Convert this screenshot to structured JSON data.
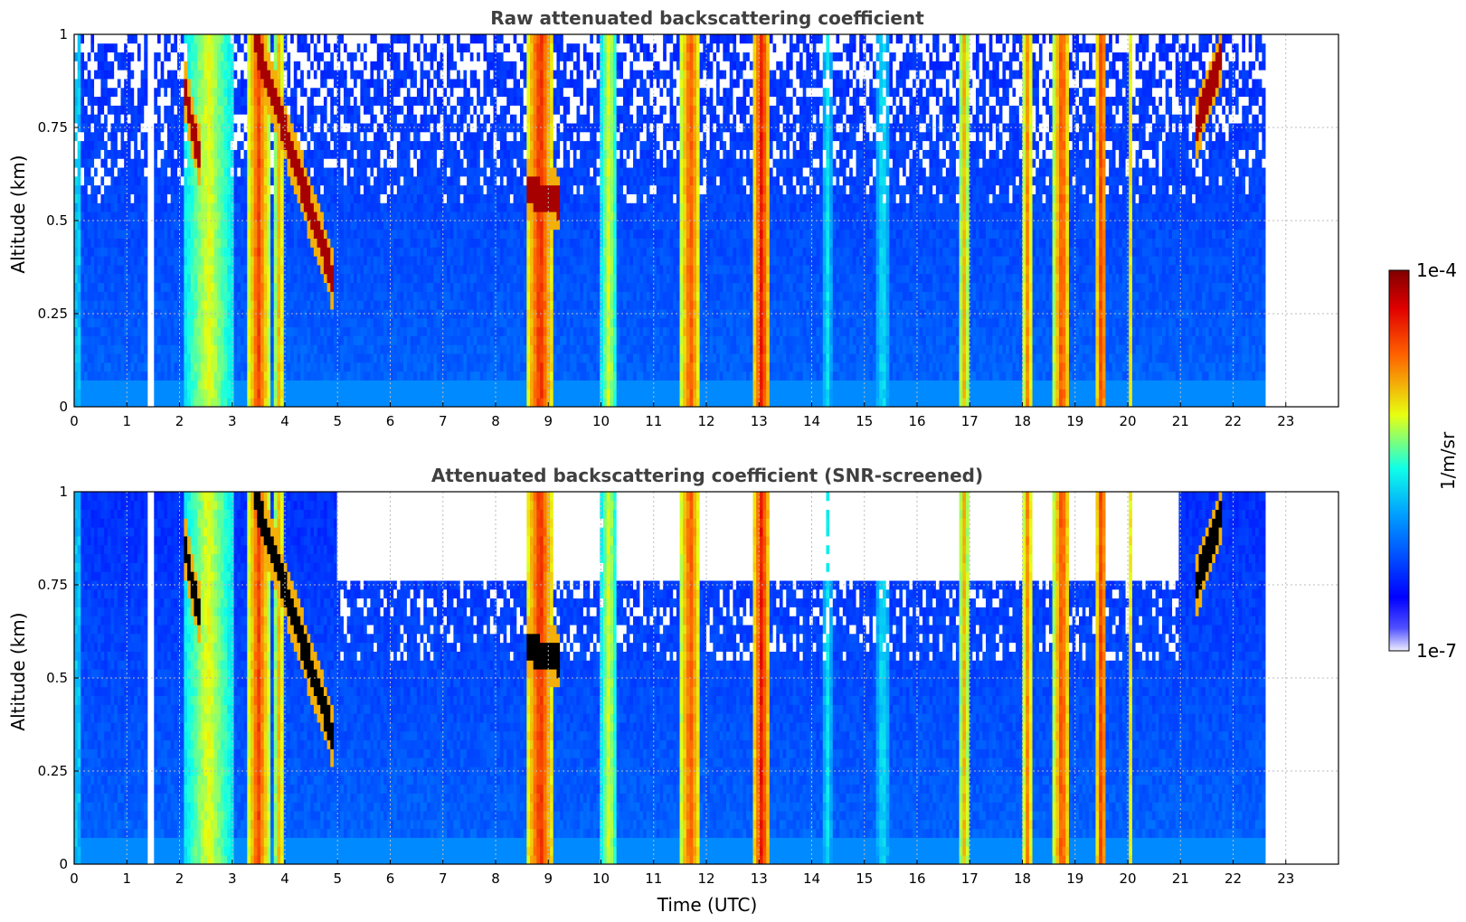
{
  "chart_data": [
    {
      "type": "heatmap",
      "title": "Raw attenuated backscattering coefficient",
      "xlabel": "",
      "ylabel": "Altitude (km)",
      "xlim": [
        0,
        24
      ],
      "ylim": [
        0,
        1
      ],
      "x_ticks": [
        "0",
        "1",
        "2",
        "3",
        "4",
        "5",
        "6",
        "7",
        "8",
        "9",
        "10",
        "11",
        "12",
        "13",
        "14",
        "15",
        "16",
        "17",
        "18",
        "19",
        "20",
        "21",
        "22",
        "23"
      ],
      "y_ticks": [
        "0",
        "0.25",
        "0.5",
        "0.75",
        "1"
      ],
      "data_end_time": 22.6,
      "grid": true,
      "screened": false,
      "colormap": "jet",
      "clouds": [
        {
          "from": 2.1,
          "to": 3.0,
          "level": 0.62
        },
        {
          "from": 3.3,
          "to": 3.7,
          "level": 0.82
        },
        {
          "from": 3.8,
          "to": 4.0,
          "level": 0.72
        },
        {
          "from": 8.6,
          "to": 9.1,
          "level": 0.85
        },
        {
          "from": 10.0,
          "to": 10.3,
          "level": 0.62
        },
        {
          "from": 11.5,
          "to": 11.9,
          "level": 0.8
        },
        {
          "from": 12.9,
          "to": 13.2,
          "level": 0.88
        },
        {
          "from": 14.2,
          "to": 14.4,
          "level": 0.45
        },
        {
          "from": 15.2,
          "to": 15.5,
          "level": 0.45
        },
        {
          "from": 16.8,
          "to": 17.0,
          "level": 0.7
        },
        {
          "from": 18.0,
          "to": 18.2,
          "level": 0.75
        },
        {
          "from": 18.6,
          "to": 18.9,
          "level": 0.82
        },
        {
          "from": 19.4,
          "to": 19.6,
          "level": 0.85
        },
        {
          "from": 20.0,
          "to": 20.1,
          "level": 0.65
        }
      ],
      "features": [
        {
          "kind": "descending-layer",
          "from_time": 3.4,
          "from_alt": 1.0,
          "to_time": 4.9,
          "to_alt": 0.35
        },
        {
          "kind": "descending-layer",
          "from_time": 2.1,
          "from_alt": 0.85,
          "to_time": 2.4,
          "to_alt": 0.65
        },
        {
          "kind": "layer",
          "from_time": 8.6,
          "from_alt": 0.58,
          "to_time": 9.2,
          "to_alt": 0.55
        },
        {
          "kind": "layer",
          "from_time": 21.3,
          "from_alt": 0.75,
          "to_time": 21.8,
          "to_alt": 0.95
        }
      ]
    },
    {
      "type": "heatmap",
      "title": "Attenuated backscattering coefficient (SNR-screened)",
      "xlabel": "Time (UTC)",
      "ylabel": "Altitude (km)",
      "xlim": [
        0,
        24
      ],
      "ylim": [
        0,
        1
      ],
      "x_ticks": [
        "0",
        "1",
        "2",
        "3",
        "4",
        "5",
        "6",
        "7",
        "8",
        "9",
        "10",
        "11",
        "12",
        "13",
        "14",
        "15",
        "16",
        "17",
        "18",
        "19",
        "20",
        "21",
        "22",
        "23"
      ],
      "y_ticks": [
        "0",
        "0.25",
        "0.5",
        "0.75",
        "1"
      ],
      "data_end_time": 22.6,
      "grid": true,
      "screened": true,
      "colormap": "jet"
    }
  ],
  "colorbar": {
    "label": "1/m/sr",
    "max_label": "1e-4",
    "min_label": "1e-7"
  }
}
